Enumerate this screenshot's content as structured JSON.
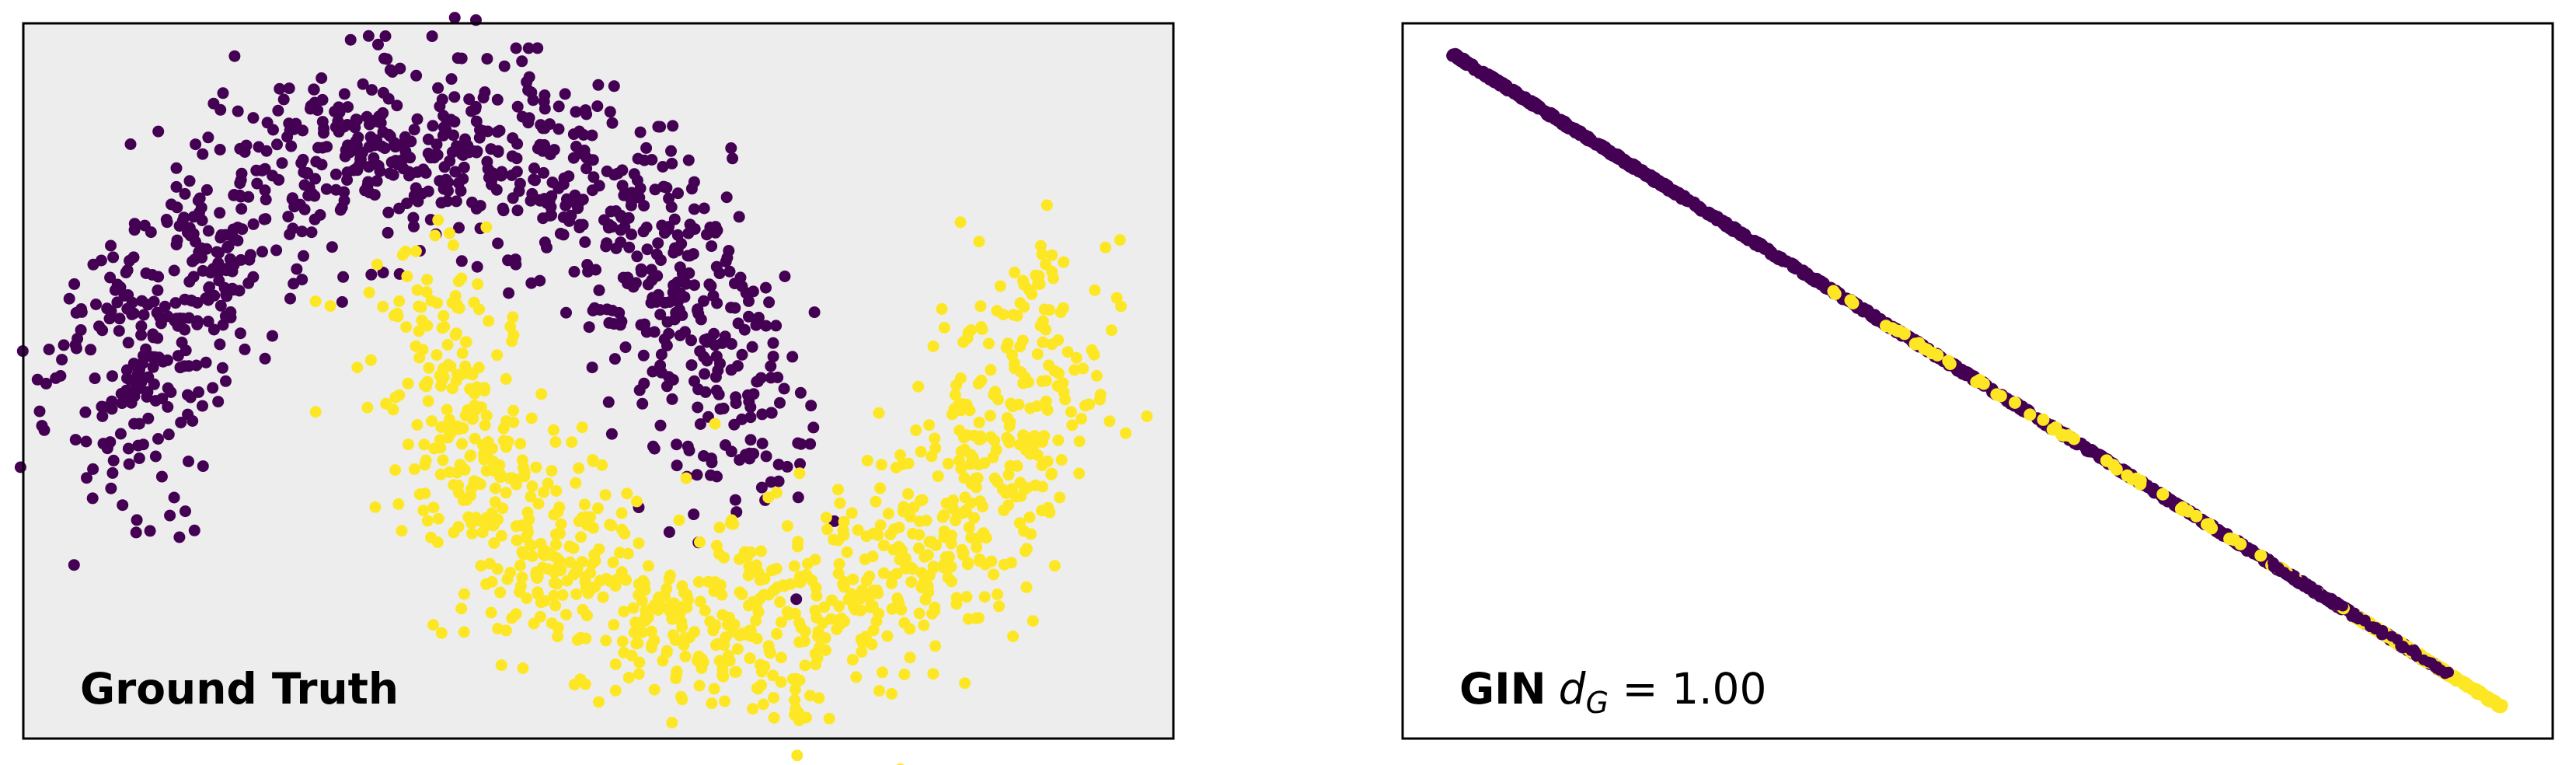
{
  "chart_data": [
    {
      "type": "scatter",
      "title": "",
      "xlabel": "",
      "ylabel": "",
      "axes_ticks": "none",
      "background": "#ededed",
      "annotation": "Ground Truth",
      "annotation_position": "bottom-left",
      "colors": {
        "class_0": "#440154",
        "class_1": "#fde725"
      },
      "distribution": {
        "shape": "two interleaving half-moons",
        "n_per_class": 1000,
        "noise": 0.15,
        "class_0_moon": "upper arc, centered x=0, y=0, radius 1, angle 0..pi",
        "class_1_moon": "lower arc, centered x=1, y=0.5, radius 1, angle pi..2pi"
      },
      "xlim": [
        -1.35,
        2.45
      ],
      "ylim": [
        -0.85,
        1.35
      ]
    },
    {
      "type": "scatter",
      "title": "",
      "xlabel": "",
      "ylabel": "",
      "axes_ticks": "none",
      "background": "#ffffff",
      "annotation": {
        "method": "GIN",
        "metric_symbol": "d",
        "metric_subscript": "G",
        "equals": " = ",
        "value": "1.00"
      },
      "annotation_position": "bottom-left",
      "colors": {
        "class_0": "#440154",
        "class_1": "#fde725"
      },
      "line": {
        "x_start": 0.0,
        "y_start": 1.0,
        "x_end": 1.0,
        "y_end": 0.0
      },
      "distribution": {
        "shape": "points collapsed onto a single diagonal line",
        "class_0_range": [
          0.0,
          0.95
        ],
        "class_1_range": [
          0.35,
          1.0
        ],
        "class_1_concentration": "mostly near lower-right end"
      },
      "xlim": [
        -0.05,
        1.05
      ],
      "ylim": [
        -0.05,
        1.05
      ]
    }
  ]
}
